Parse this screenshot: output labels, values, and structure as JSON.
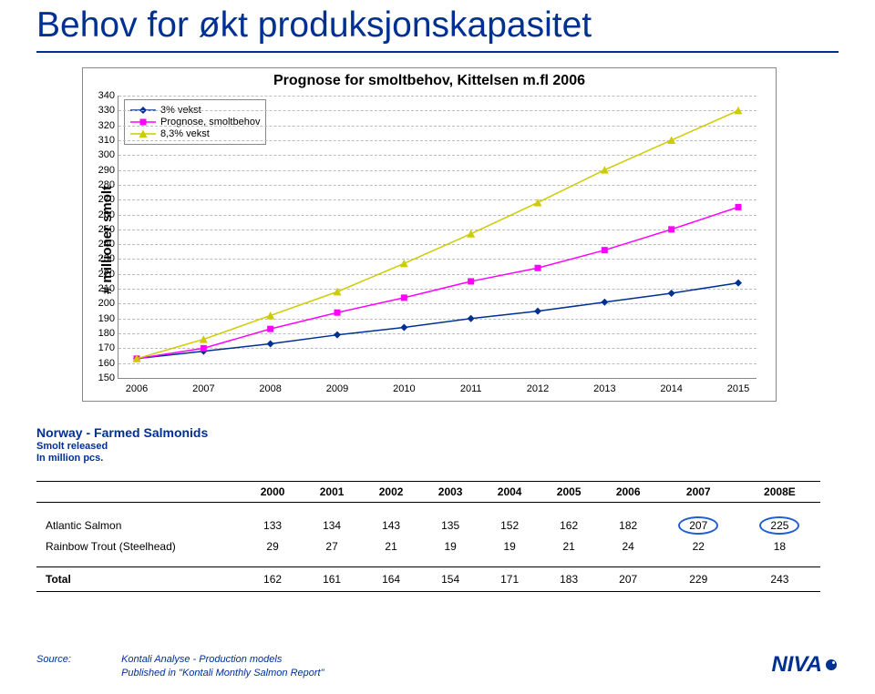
{
  "title": "Behov for økt produksjonskapasitet",
  "chart": {
    "title": "Prognose for smoltbehov, Kittelsen m.fl 2006",
    "ylabel": "# millioner smolt",
    "ymin": 150,
    "ymax": 340,
    "ytick_step": 10,
    "xcats": [
      "2006",
      "2007",
      "2008",
      "2009",
      "2010",
      "2011",
      "2012",
      "2013",
      "2014",
      "2015"
    ],
    "series": [
      {
        "label": "3% vekst",
        "color": "#003091",
        "marker": "diamond",
        "values": [
          163,
          168,
          173,
          179,
          184,
          190,
          195,
          201,
          207,
          214
        ]
      },
      {
        "label": "Prognose, smoltbehov",
        "color": "#ff00ff",
        "marker": "square",
        "values": [
          163,
          170,
          183,
          194,
          204,
          215,
          224,
          236,
          250,
          265
        ]
      },
      {
        "label": "8,3% vekst",
        "color": "#cccc00",
        "marker": "triangle",
        "values": [
          163,
          176,
          192,
          208,
          227,
          247,
          268,
          290,
          310,
          330
        ]
      }
    ],
    "grid_color": "#bbbbbb",
    "border_color": "#888888",
    "bg_color": "#ffffff"
  },
  "table": {
    "header_line1": "Norway - Farmed Salmonids",
    "header_line2": "Smolt released",
    "header_line3": "In million pcs.",
    "columns": [
      "",
      "2000",
      "2001",
      "2002",
      "2003",
      "2004",
      "2005",
      "2006",
      "2007",
      "2008E"
    ],
    "rows": [
      {
        "label": "Atlantic Salmon",
        "cells": [
          "133",
          "134",
          "143",
          "135",
          "152",
          "162",
          "182",
          "207",
          "225"
        ],
        "circle_cols": [
          7,
          8
        ]
      },
      {
        "label": "Rainbow Trout (Steelhead)",
        "cells": [
          "29",
          "27",
          "21",
          "19",
          "19",
          "21",
          "24",
          "22",
          "18"
        ],
        "circle_cols": []
      }
    ],
    "total": {
      "label": "Total",
      "cells": [
        "162",
        "161",
        "164",
        "154",
        "171",
        "183",
        "207",
        "229",
        "243"
      ]
    }
  },
  "source": {
    "label": "Source:",
    "line1": "Kontali Analyse - Production models",
    "line2": "Published in \"Kontali Monthly Salmon Report\""
  },
  "logo_text": "NIVA"
}
